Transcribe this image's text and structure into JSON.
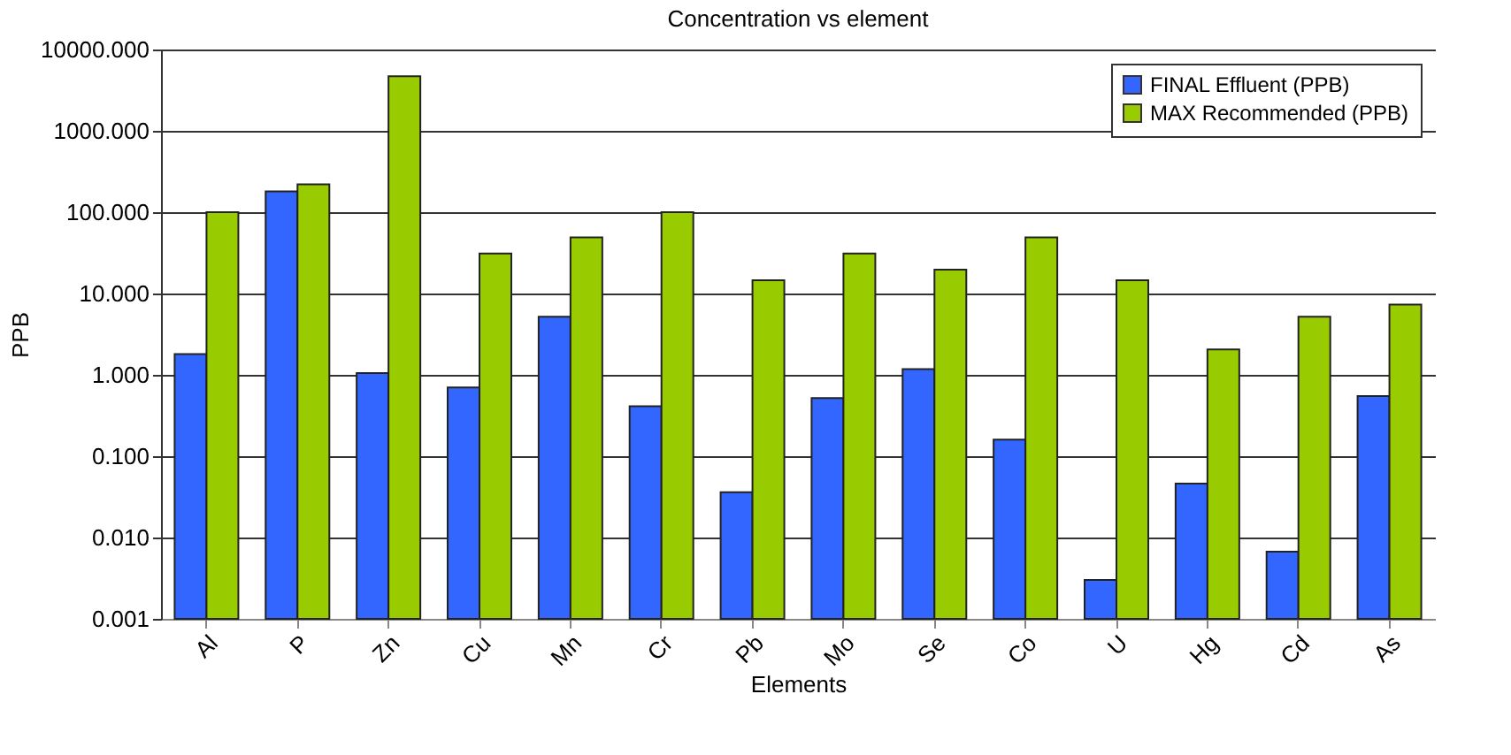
{
  "chart_data": {
    "type": "bar",
    "title": "Concentration vs element",
    "xlabel": "Elements",
    "ylabel": "PPB",
    "categories": [
      "Al",
      "P",
      "Zn",
      "Cu",
      "Mn",
      "Cr",
      "Pb",
      "Mo",
      "Se",
      "Co",
      "U",
      "Hg",
      "Cd",
      "As"
    ],
    "series": [
      {
        "name": "FINAL Effluent (PPB)",
        "color": "#3366ff",
        "values": [
          1.8,
          180,
          1.05,
          0.7,
          5.2,
          0.41,
          0.036,
          0.52,
          1.18,
          0.16,
          0.003,
          0.046,
          0.0067,
          0.55
        ]
      },
      {
        "name": "MAX Recommended (PPB)",
        "color": "#99cc00",
        "values": [
          100,
          220,
          4700,
          31,
          49,
          100,
          14.6,
          31,
          19.7,
          49,
          14.6,
          2.05,
          5.2,
          7.3
        ]
      }
    ],
    "log": true,
    "ylim": [
      0.001,
      10000
    ],
    "yticks": [
      {
        "value": 0.001,
        "label": "0.001"
      },
      {
        "value": 0.01,
        "label": "0.010"
      },
      {
        "value": 0.1,
        "label": "0.100"
      },
      {
        "value": 1,
        "label": "1.000"
      },
      {
        "value": 10,
        "label": "10.000"
      },
      {
        "value": 100,
        "label": "100.000"
      },
      {
        "value": 1000,
        "label": "1000.000"
      },
      {
        "value": 10000,
        "label": "10000.000"
      }
    ],
    "grid": "y",
    "legend": "top right"
  }
}
